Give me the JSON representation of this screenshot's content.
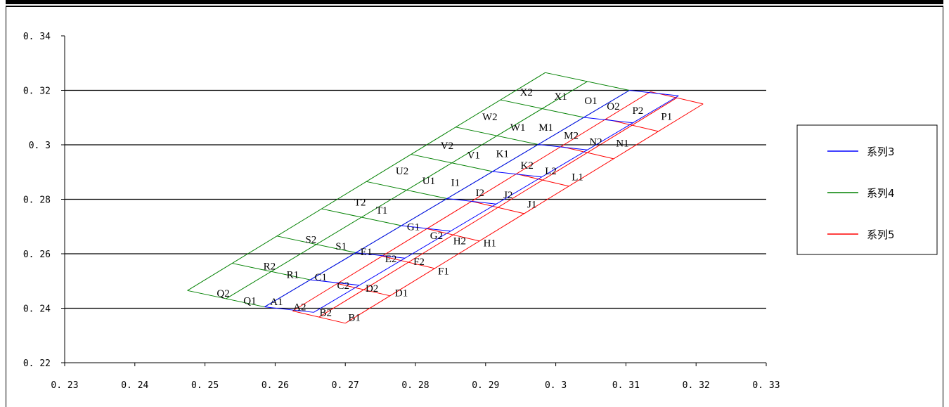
{
  "chart_data": {
    "type": "line",
    "title": "",
    "xlabel": "",
    "ylabel": "",
    "xlim": [
      0.23,
      0.33
    ],
    "ylim": [
      0.22,
      0.34
    ],
    "x_ticks": [
      "0.23",
      "0.24",
      "0.25",
      "0.26",
      "0.27",
      "0.28",
      "0.29",
      "0.3",
      "0.31",
      "0.32",
      "0.33"
    ],
    "y_ticks": [
      "0.34",
      "0.32",
      "0.3",
      "0.28",
      "0.26",
      "0.24",
      "0.22"
    ],
    "grid": "horizontal major gridlines",
    "legend_position": "right",
    "series": [
      {
        "name": "系列3",
        "color": "#0000ff",
        "corners": [
          [
            0.2585,
            0.2405
          ],
          [
            0.2655,
            0.2385
          ],
          [
            0.3175,
            0.318
          ],
          [
            0.3105,
            0.32
          ]
        ]
      },
      {
        "name": "系列4",
        "color": "#008000",
        "corners": [
          [
            0.2475,
            0.2465
          ],
          [
            0.2585,
            0.2405
          ],
          [
            0.3105,
            0.32
          ],
          [
            0.2985,
            0.3265
          ]
        ]
      },
      {
        "name": "系列5",
        "color": "#ff0000",
        "corners": [
          [
            0.2625,
            0.239
          ],
          [
            0.27,
            0.2345
          ],
          [
            0.321,
            0.315
          ],
          [
            0.3135,
            0.3195
          ]
        ]
      }
    ],
    "point_labels": [
      {
        "text": "A1",
        "x": 0.2602,
        "y": 0.2425
      },
      {
        "text": "A2",
        "x": 0.2635,
        "y": 0.2405
      },
      {
        "text": "B2",
        "x": 0.2672,
        "y": 0.2385
      },
      {
        "text": "B1",
        "x": 0.2713,
        "y": 0.2367
      },
      {
        "text": "C1",
        "x": 0.2665,
        "y": 0.2515
      },
      {
        "text": "C2",
        "x": 0.2697,
        "y": 0.2484
      },
      {
        "text": "D2",
        "x": 0.2738,
        "y": 0.2474
      },
      {
        "text": "D1",
        "x": 0.278,
        "y": 0.2457
      },
      {
        "text": "E1",
        "x": 0.273,
        "y": 0.2608
      },
      {
        "text": "E2",
        "x": 0.2765,
        "y": 0.2582
      },
      {
        "text": "F2",
        "x": 0.2805,
        "y": 0.2572
      },
      {
        "text": "F1",
        "x": 0.284,
        "y": 0.2537
      },
      {
        "text": "G1",
        "x": 0.2797,
        "y": 0.27
      },
      {
        "text": "G2",
        "x": 0.283,
        "y": 0.2667
      },
      {
        "text": "H2",
        "x": 0.2863,
        "y": 0.2648
      },
      {
        "text": "H1",
        "x": 0.2906,
        "y": 0.264
      },
      {
        "text": "I1",
        "x": 0.2857,
        "y": 0.2862
      },
      {
        "text": "I2",
        "x": 0.2892,
        "y": 0.2825
      },
      {
        "text": "J2",
        "x": 0.2932,
        "y": 0.2817
      },
      {
        "text": "J1",
        "x": 0.2966,
        "y": 0.2782
      },
      {
        "text": "K1",
        "x": 0.2924,
        "y": 0.2968
      },
      {
        "text": "K2",
        "x": 0.2959,
        "y": 0.2925
      },
      {
        "text": "L2",
        "x": 0.2993,
        "y": 0.2905
      },
      {
        "text": "L1",
        "x": 0.3031,
        "y": 0.2882
      },
      {
        "text": "M1",
        "x": 0.2986,
        "y": 0.3065
      },
      {
        "text": "M2",
        "x": 0.3022,
        "y": 0.3035
      },
      {
        "text": "N2",
        "x": 0.3057,
        "y": 0.3012
      },
      {
        "text": "N1",
        "x": 0.3095,
        "y": 0.3007
      },
      {
        "text": "O1",
        "x": 0.305,
        "y": 0.3162
      },
      {
        "text": "O2",
        "x": 0.3082,
        "y": 0.3142
      },
      {
        "text": "P2",
        "x": 0.3117,
        "y": 0.3127
      },
      {
        "text": "P1",
        "x": 0.3158,
        "y": 0.3104
      },
      {
        "text": "Q2",
        "x": 0.2526,
        "y": 0.2455
      },
      {
        "text": "Q1",
        "x": 0.2564,
        "y": 0.2428
      },
      {
        "text": "R2",
        "x": 0.2592,
        "y": 0.2555
      },
      {
        "text": "R1",
        "x": 0.2625,
        "y": 0.2524
      },
      {
        "text": "S2",
        "x": 0.2651,
        "y": 0.2653
      },
      {
        "text": "S1",
        "x": 0.2694,
        "y": 0.2629
      },
      {
        "text": "T2",
        "x": 0.2721,
        "y": 0.279
      },
      {
        "text": "T1",
        "x": 0.2752,
        "y": 0.276
      },
      {
        "text": "U2",
        "x": 0.2781,
        "y": 0.2905
      },
      {
        "text": "U1",
        "x": 0.2819,
        "y": 0.2868
      },
      {
        "text": "V2",
        "x": 0.2845,
        "y": 0.2998
      },
      {
        "text": "V1",
        "x": 0.2883,
        "y": 0.2962
      },
      {
        "text": "W2",
        "x": 0.2906,
        "y": 0.3103
      },
      {
        "text": "W1",
        "x": 0.2946,
        "y": 0.3064
      },
      {
        "text": "X2",
        "x": 0.2958,
        "y": 0.3194
      },
      {
        "text": "X1",
        "x": 0.3007,
        "y": 0.3178
      }
    ]
  }
}
